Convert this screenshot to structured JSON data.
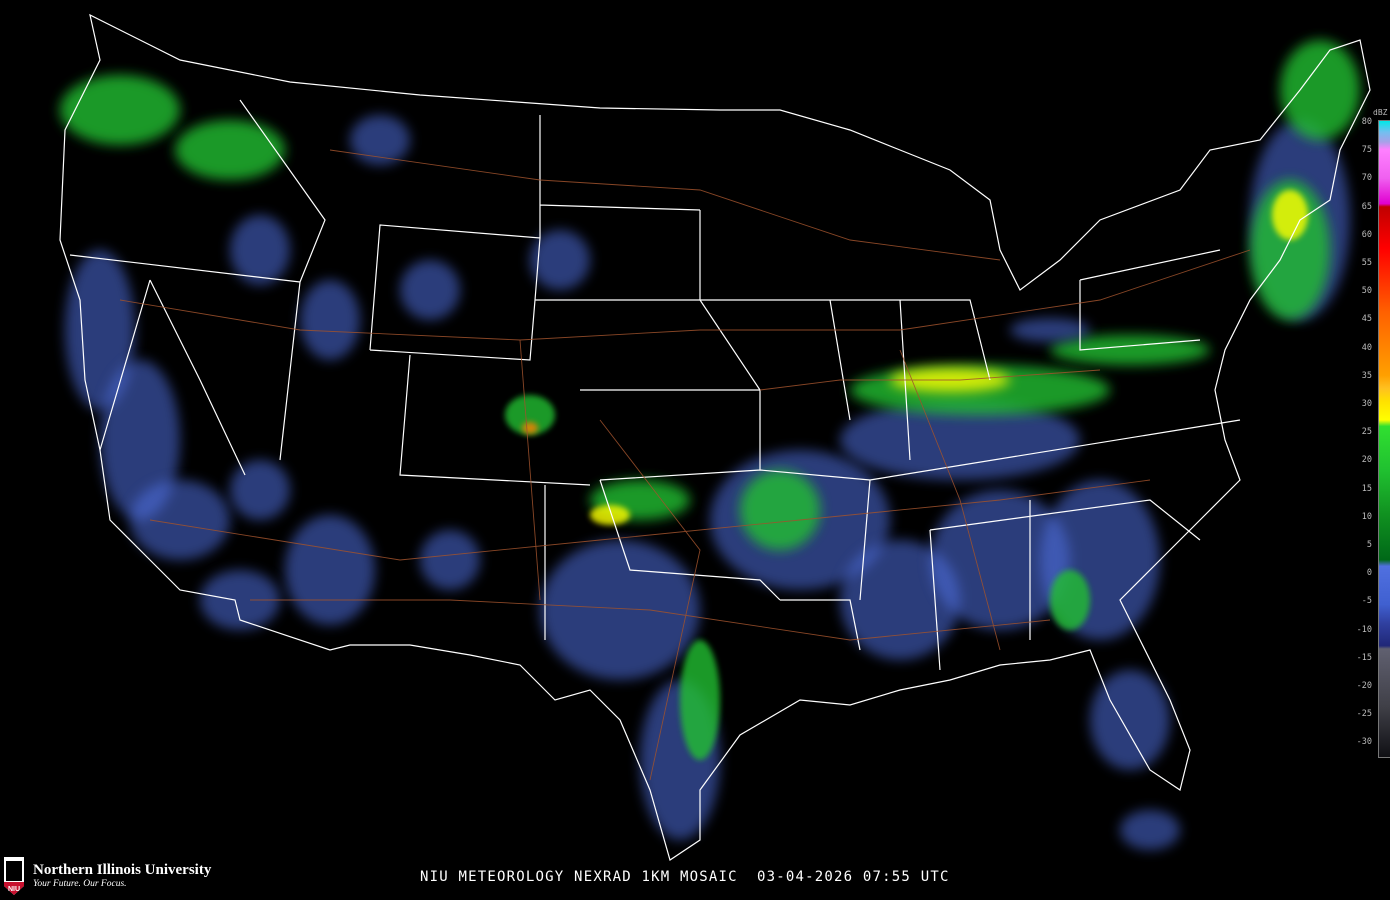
{
  "title": "NIU METEOROLOGY NEXRAD 1KM MOSAIC  03-04-2026 07:55 UTC",
  "logo": {
    "name": "Northern Illinois University",
    "tagline": "Your Future. Our Focus.",
    "shield_text": "NIU"
  },
  "legend": {
    "unit": "dBZ",
    "ticks": [
      "80",
      "75",
      "70",
      "65",
      "60",
      "55",
      "50",
      "45",
      "40",
      "35",
      "30",
      "25",
      "20",
      "15",
      "10",
      "5",
      "0",
      "-5",
      "-10",
      "-15",
      "-20",
      "-25",
      "-30"
    ],
    "colors": {
      "cyan": "#00e8e8",
      "pink": "#ff80ff",
      "magenta": "#e000d0",
      "red": "#ff0000",
      "orange": "#ff8000",
      "yellow": "#ffff00",
      "green": "#20c030",
      "dark_green": "#006818",
      "blue": "#5070e0",
      "dark_blue": "#202878",
      "gray": "#606070"
    }
  },
  "map": {
    "background": "#000000",
    "borders": "#ffffff",
    "highways": "#a0522d"
  }
}
